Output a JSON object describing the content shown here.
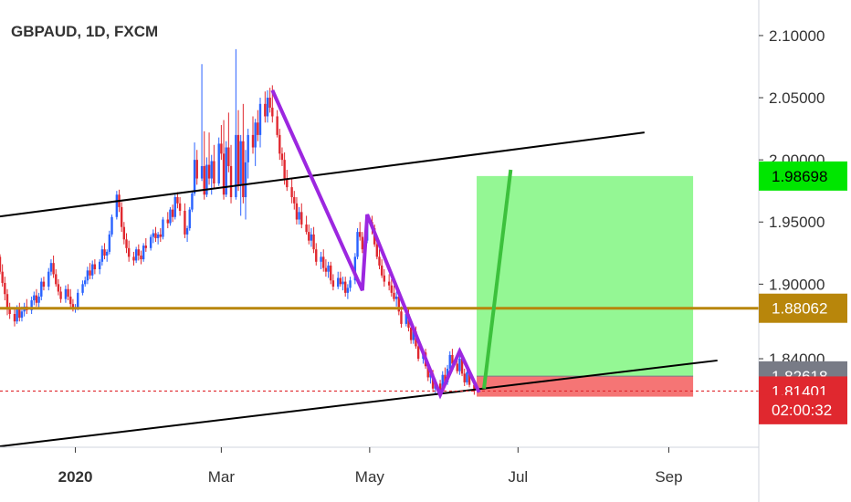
{
  "chart_data": {
    "type": "candlestick",
    "title": "GBPAUD, 1D, FXCM",
    "x_range": [
      "2019-12-01",
      "2020-10-08"
    ],
    "y_range": [
      1.7688,
      2.1286
    ],
    "y_ticks": [
      "2.10000",
      "2.05000",
      "2.00000",
      "1.95000",
      "1.90000",
      "1.84000"
    ],
    "x_ticks": [
      {
        "date": "2020-01-01",
        "label": "2020"
      },
      {
        "date": "2020-03-01",
        "label": "Mar"
      },
      {
        "date": "2020-05-01",
        "label": "May"
      },
      {
        "date": "2020-07-01",
        "label": "Jul"
      },
      {
        "date": "2020-09-01",
        "label": "Sep"
      }
    ],
    "price_tags": [
      {
        "value": 1.98698,
        "label": "1.98698",
        "bg": "#00e600",
        "fg": "#000000"
      },
      {
        "value": 1.88062,
        "label": "1.88062",
        "bg": "#b8860b",
        "fg": "#ffffff"
      },
      {
        "value": 1.82618,
        "label": "1.82618",
        "bg": "#787b86",
        "fg": "#ffffff"
      },
      {
        "value": 1.81401,
        "label": "1.81401",
        "bg": "#e0282f",
        "fg": "#ffffff"
      },
      {
        "value": 1.799,
        "label": "02:00:32",
        "bg": "#e0282f",
        "fg": "#ffffff"
      }
    ],
    "colors": {
      "up": "#2962ff",
      "down": "#e0282f",
      "pattern": "#9c27e0",
      "projection": "#3cc13c",
      "trendline": "#000000",
      "level": "#b8860b"
    },
    "horizontal_level": 1.88062,
    "current_price": 1.81401,
    "trendlines": [
      {
        "points": [
          [
            "2019-12-01",
            1.9545
          ],
          [
            "2020-08-22",
            2.022
          ]
        ]
      },
      {
        "points": [
          [
            "2019-12-01",
            1.7695
          ],
          [
            "2020-09-21",
            1.8386
          ]
        ]
      }
    ],
    "pattern": [
      [
        "2020-03-22",
        2.056
      ],
      [
        "2020-04-28",
        1.895
      ],
      [
        "2020-04-30",
        1.956
      ],
      [
        "2020-05-30",
        1.811
      ],
      [
        "2020-06-07",
        1.846
      ],
      [
        "2020-06-15",
        1.813
      ]
    ],
    "projection": [
      [
        "2020-06-17",
        1.816
      ],
      [
        "2020-06-28",
        1.992
      ]
    ],
    "position": {
      "start": "2020-06-14",
      "end": "2020-09-11",
      "entry": 1.826,
      "target": 1.98698,
      "stop": 1.8095
    },
    "candles": [
      [
        "2019-12-01",
        1.922,
        1.924,
        1.908,
        1.91
      ],
      [
        "2019-12-02",
        1.91,
        1.916,
        1.898,
        1.901
      ],
      [
        "2019-12-03",
        1.901,
        1.906,
        1.887,
        1.892
      ],
      [
        "2019-12-04",
        1.892,
        1.896,
        1.875,
        1.88
      ],
      [
        "2019-12-05",
        1.88,
        1.885,
        1.872,
        1.876
      ],
      [
        "2019-12-07",
        1.876,
        1.88,
        1.866,
        1.87
      ],
      [
        "2019-12-08",
        1.87,
        1.883,
        1.868,
        1.88
      ],
      [
        "2019-12-09",
        1.88,
        1.885,
        1.87,
        1.873
      ],
      [
        "2019-12-10",
        1.873,
        1.882,
        1.87,
        1.878
      ],
      [
        "2019-12-11",
        1.878,
        1.885,
        1.874,
        1.882
      ],
      [
        "2019-12-12",
        1.882,
        1.888,
        1.876,
        1.879
      ],
      [
        "2019-12-14",
        1.879,
        1.89,
        1.876,
        1.887
      ],
      [
        "2019-12-15",
        1.887,
        1.894,
        1.883,
        1.891
      ],
      [
        "2019-12-16",
        1.891,
        1.896,
        1.882,
        1.885
      ],
      [
        "2019-12-17",
        1.885,
        1.893,
        1.881,
        1.89
      ],
      [
        "2019-12-18",
        1.89,
        1.905,
        1.887,
        1.902
      ],
      [
        "2019-12-19",
        1.902,
        1.906,
        1.895,
        1.898
      ],
      [
        "2019-12-21",
        1.898,
        1.913,
        1.895,
        1.91
      ],
      [
        "2019-12-22",
        1.91,
        1.92,
        1.907,
        1.917
      ],
      [
        "2019-12-23",
        1.917,
        1.923,
        1.905,
        1.908
      ],
      [
        "2019-12-24",
        1.908,
        1.912,
        1.898,
        1.9
      ],
      [
        "2019-12-25",
        1.9,
        1.904,
        1.891,
        1.894
      ],
      [
        "2019-12-26",
        1.894,
        1.898,
        1.885,
        1.888
      ],
      [
        "2019-12-28",
        1.888,
        1.899,
        1.885,
        1.896
      ],
      [
        "2019-12-29",
        1.896,
        1.9,
        1.887,
        1.89
      ],
      [
        "2019-12-30",
        1.89,
        1.896,
        1.881,
        1.884
      ],
      [
        "2019-12-31",
        1.884,
        1.888,
        1.878,
        1.88
      ],
      [
        "2020-01-01",
        1.88,
        1.884,
        1.877,
        1.881
      ],
      [
        "2020-01-02",
        1.881,
        1.896,
        1.879,
        1.893
      ],
      [
        "2020-01-04",
        1.893,
        1.903,
        1.891,
        1.9
      ],
      [
        "2020-01-05",
        1.9,
        1.906,
        1.898,
        1.903
      ],
      [
        "2020-01-06",
        1.903,
        1.914,
        1.9,
        1.911
      ],
      [
        "2020-01-07",
        1.911,
        1.917,
        1.904,
        1.907
      ],
      [
        "2020-01-08",
        1.907,
        1.919,
        1.904,
        1.916
      ],
      [
        "2020-01-09",
        1.916,
        1.92,
        1.908,
        1.912
      ],
      [
        "2020-01-11",
        1.912,
        1.92,
        1.908,
        1.918
      ],
      [
        "2020-01-12",
        1.918,
        1.931,
        1.915,
        1.928
      ],
      [
        "2020-01-13",
        1.928,
        1.933,
        1.92,
        1.923
      ],
      [
        "2020-01-14",
        1.923,
        1.928,
        1.918,
        1.926
      ],
      [
        "2020-01-15",
        1.926,
        1.943,
        1.924,
        1.94
      ],
      [
        "2020-01-16",
        1.94,
        1.956,
        1.938,
        1.954
      ],
      [
        "2020-01-18",
        1.954,
        1.975,
        1.952,
        1.972
      ],
      [
        "2020-01-19",
        1.972,
        1.976,
        1.958,
        1.962
      ],
      [
        "2020-01-20",
        1.962,
        1.966,
        1.942,
        1.946
      ],
      [
        "2020-01-21",
        1.946,
        1.95,
        1.932,
        1.936
      ],
      [
        "2020-01-22",
        1.936,
        1.941,
        1.925,
        1.929
      ],
      [
        "2020-01-23",
        1.929,
        1.935,
        1.918,
        1.922
      ],
      [
        "2020-01-25",
        1.922,
        1.926,
        1.915,
        1.919
      ],
      [
        "2020-01-26",
        1.919,
        1.93,
        1.917,
        1.928
      ],
      [
        "2020-01-27",
        1.928,
        1.932,
        1.919,
        1.923
      ],
      [
        "2020-01-28",
        1.923,
        1.927,
        1.916,
        1.92
      ],
      [
        "2020-01-29",
        1.92,
        1.933,
        1.918,
        1.931
      ],
      [
        "2020-01-30",
        1.931,
        1.937,
        1.926,
        1.929
      ],
      [
        "2020-02-01",
        1.929,
        1.94,
        1.927,
        1.938
      ],
      [
        "2020-02-02",
        1.938,
        1.944,
        1.933,
        1.941
      ],
      [
        "2020-02-03",
        1.941,
        1.946,
        1.934,
        1.937
      ],
      [
        "2020-02-04",
        1.937,
        1.942,
        1.932,
        1.94
      ],
      [
        "2020-02-05",
        1.94,
        1.945,
        1.934,
        1.938
      ],
      [
        "2020-02-06",
        1.938,
        1.954,
        1.936,
        1.952
      ],
      [
        "2020-02-08",
        1.952,
        1.958,
        1.945,
        1.949
      ],
      [
        "2020-02-09",
        1.949,
        1.962,
        1.947,
        1.96
      ],
      [
        "2020-02-10",
        1.96,
        1.964,
        1.95,
        1.954
      ],
      [
        "2020-02-11",
        1.954,
        1.972,
        1.952,
        1.97
      ],
      [
        "2020-02-12",
        1.97,
        1.974,
        1.961,
        1.965
      ],
      [
        "2020-02-13",
        1.965,
        1.97,
        1.955,
        1.959
      ],
      [
        "2020-02-15",
        1.959,
        1.965,
        1.937,
        1.94
      ],
      [
        "2020-02-16",
        1.94,
        1.947,
        1.934,
        1.945
      ],
      [
        "2020-02-17",
        1.945,
        1.962,
        1.943,
        1.96
      ],
      [
        "2020-02-18",
        1.96,
        1.975,
        1.958,
        1.973
      ],
      [
        "2020-02-19",
        1.973,
        2.014,
        1.971,
        2.0
      ],
      [
        "2020-02-20",
        2.0,
        2.008,
        1.98,
        1.985
      ],
      [
        "2020-02-22",
        1.985,
        2.077,
        1.983,
        1.995
      ],
      [
        "2020-02-23",
        1.995,
        2.023,
        1.968,
        1.972
      ],
      [
        "2020-02-24",
        1.972,
        2.002,
        1.97,
        1.996
      ],
      [
        "2020-02-25",
        1.996,
        2.022,
        1.98,
        1.985
      ],
      [
        "2020-02-26",
        1.985,
        2.004,
        1.972,
        1.999
      ],
      [
        "2020-02-27",
        1.999,
        2.012,
        1.977,
        1.981
      ],
      [
        "2020-02-29",
        1.981,
        2.018,
        1.979,
        2.013
      ],
      [
        "2020-03-01",
        2.013,
        2.028,
        2.0,
        2.005
      ],
      [
        "2020-03-02",
        2.005,
        2.032,
        1.968,
        1.972
      ],
      [
        "2020-03-03",
        1.972,
        2.015,
        1.97,
        2.01
      ],
      [
        "2020-03-04",
        2.01,
        2.038,
        1.99,
        1.995
      ],
      [
        "2020-03-05",
        1.995,
        2.012,
        1.965,
        1.97
      ],
      [
        "2020-03-07",
        1.97,
        2.089,
        1.968,
        2.02
      ],
      [
        "2020-03-08",
        2.02,
        2.04,
        1.975,
        1.98
      ],
      [
        "2020-03-09",
        1.98,
        2.02,
        1.955,
        2.015
      ],
      [
        "2020-03-10",
        2.015,
        2.045,
        1.965,
        1.97
      ],
      [
        "2020-03-11",
        1.97,
        2.008,
        1.952,
        1.998
      ],
      [
        "2020-03-12",
        1.998,
        2.025,
        1.985,
        2.02
      ],
      [
        "2020-03-14",
        2.02,
        2.035,
        2.005,
        2.01
      ],
      [
        "2020-03-15",
        2.01,
        2.033,
        1.995,
        2.03
      ],
      [
        "2020-03-16",
        2.03,
        2.04,
        2.015,
        2.02
      ],
      [
        "2020-03-17",
        2.02,
        2.05,
        2.01,
        2.045
      ],
      [
        "2020-03-19",
        2.045,
        2.055,
        2.03,
        2.035
      ],
      [
        "2020-03-20",
        2.035,
        2.056,
        2.03,
        2.05
      ],
      [
        "2020-03-21",
        2.05,
        2.058,
        2.038,
        2.042
      ],
      [
        "2020-03-22",
        2.042,
        2.06,
        2.03,
        2.035
      ],
      [
        "2020-03-24",
        2.035,
        2.04,
        2.018,
        2.02
      ],
      [
        "2020-03-25",
        2.02,
        2.025,
        2.0,
        2.005
      ],
      [
        "2020-03-26",
        2.005,
        2.01,
        1.995,
        2.0
      ],
      [
        "2020-03-27",
        2.0,
        2.006,
        1.98,
        1.985
      ],
      [
        "2020-03-28",
        1.985,
        1.992,
        1.975,
        1.978
      ],
      [
        "2020-03-30",
        1.978,
        1.985,
        1.965,
        1.97
      ],
      [
        "2020-03-31",
        1.97,
        1.975,
        1.96,
        1.965
      ],
      [
        "2020-04-01",
        1.965,
        1.97,
        1.948,
        1.952
      ],
      [
        "2020-04-02",
        1.952,
        1.962,
        1.948,
        1.958
      ],
      [
        "2020-04-03",
        1.958,
        1.965,
        1.945,
        1.948
      ],
      [
        "2020-04-05",
        1.948,
        1.955,
        1.94,
        1.942
      ],
      [
        "2020-04-06",
        1.942,
        1.948,
        1.932,
        1.935
      ],
      [
        "2020-04-07",
        1.935,
        1.945,
        1.93,
        1.94
      ],
      [
        "2020-04-08",
        1.94,
        1.946,
        1.925,
        1.928
      ],
      [
        "2020-04-09",
        1.928,
        1.933,
        1.915,
        1.918
      ],
      [
        "2020-04-11",
        1.918,
        1.926,
        1.912,
        1.922
      ],
      [
        "2020-04-12",
        1.922,
        1.928,
        1.91,
        1.913
      ],
      [
        "2020-04-13",
        1.913,
        1.92,
        1.906,
        1.91
      ],
      [
        "2020-04-14",
        1.91,
        1.918,
        1.905,
        1.915
      ],
      [
        "2020-04-15",
        1.915,
        1.918,
        1.9,
        1.903
      ],
      [
        "2020-04-16",
        1.903,
        1.908,
        1.895,
        1.898
      ],
      [
        "2020-04-18",
        1.898,
        1.91,
        1.896,
        1.905
      ],
      [
        "2020-04-19",
        1.905,
        1.91,
        1.898,
        1.9
      ],
      [
        "2020-04-20",
        1.9,
        1.906,
        1.895,
        1.902
      ],
      [
        "2020-04-21",
        1.902,
        1.906,
        1.89,
        1.893
      ],
      [
        "2020-04-22",
        1.893,
        1.9,
        1.888,
        1.897
      ],
      [
        "2020-04-23",
        1.897,
        1.906,
        1.894,
        1.903
      ],
      [
        "2020-04-25",
        1.903,
        1.925,
        1.9,
        1.922
      ],
      [
        "2020-04-26",
        1.922,
        1.945,
        1.92,
        1.942
      ],
      [
        "2020-04-27",
        1.942,
        1.95,
        1.935,
        1.938
      ],
      [
        "2020-04-28",
        1.938,
        1.942,
        1.925,
        1.928
      ],
      [
        "2020-04-29",
        1.928,
        1.94,
        1.925,
        1.935
      ],
      [
        "2020-04-30",
        1.935,
        1.956,
        1.933,
        1.95
      ],
      [
        "2020-05-02",
        1.95,
        1.955,
        1.94,
        1.945
      ],
      [
        "2020-05-03",
        1.945,
        1.948,
        1.93,
        1.932
      ],
      [
        "2020-05-04",
        1.932,
        1.936,
        1.92,
        1.922
      ],
      [
        "2020-05-05",
        1.922,
        1.928,
        1.912,
        1.915
      ],
      [
        "2020-05-06",
        1.915,
        1.92,
        1.905,
        1.907
      ],
      [
        "2020-05-07",
        1.907,
        1.912,
        1.898,
        1.902
      ],
      [
        "2020-05-09",
        1.902,
        1.908,
        1.895,
        1.899
      ],
      [
        "2020-05-10",
        1.899,
        1.904,
        1.89,
        1.893
      ],
      [
        "2020-05-11",
        1.893,
        1.899,
        1.886,
        1.888
      ],
      [
        "2020-05-12",
        1.888,
        1.894,
        1.882,
        1.89
      ],
      [
        "2020-05-13",
        1.89,
        1.893,
        1.875,
        1.878
      ],
      [
        "2020-05-14",
        1.878,
        1.882,
        1.865,
        1.868
      ],
      [
        "2020-05-16",
        1.868,
        1.879,
        1.866,
        1.876
      ],
      [
        "2020-05-17",
        1.876,
        1.88,
        1.862,
        1.865
      ],
      [
        "2020-05-18",
        1.865,
        1.87,
        1.852,
        1.855
      ],
      [
        "2020-05-19",
        1.855,
        1.865,
        1.852,
        1.862
      ],
      [
        "2020-05-20",
        1.862,
        1.866,
        1.848,
        1.85
      ],
      [
        "2020-05-21",
        1.85,
        1.854,
        1.838,
        1.84
      ],
      [
        "2020-05-23",
        1.84,
        1.848,
        1.836,
        1.845
      ],
      [
        "2020-05-24",
        1.845,
        1.848,
        1.832,
        1.834
      ],
      [
        "2020-05-25",
        1.834,
        1.838,
        1.822,
        1.825
      ],
      [
        "2020-05-26",
        1.825,
        1.832,
        1.82,
        1.828
      ],
      [
        "2020-05-27",
        1.828,
        1.831,
        1.813,
        1.816
      ],
      [
        "2020-05-28",
        1.816,
        1.824,
        1.811,
        1.82
      ],
      [
        "2020-05-30",
        1.82,
        1.823,
        1.812,
        1.815
      ],
      [
        "2020-05-31",
        1.815,
        1.83,
        1.813,
        1.827
      ],
      [
        "2020-06-01",
        1.827,
        1.833,
        1.818,
        1.821
      ],
      [
        "2020-06-02",
        1.821,
        1.835,
        1.819,
        1.832
      ],
      [
        "2020-06-03",
        1.832,
        1.846,
        1.83,
        1.843
      ],
      [
        "2020-06-04",
        1.843,
        1.848,
        1.833,
        1.836
      ],
      [
        "2020-06-06",
        1.836,
        1.842,
        1.828,
        1.83
      ],
      [
        "2020-06-07",
        1.83,
        1.845,
        1.827,
        1.84
      ],
      [
        "2020-06-08",
        1.84,
        1.844,
        1.826,
        1.828
      ],
      [
        "2020-06-09",
        1.828,
        1.832,
        1.818,
        1.821
      ],
      [
        "2020-06-10",
        1.821,
        1.833,
        1.819,
        1.829
      ],
      [
        "2020-06-11",
        1.829,
        1.832,
        1.817,
        1.819
      ],
      [
        "2020-06-13",
        1.819,
        1.823,
        1.811,
        1.814
      ]
    ]
  }
}
